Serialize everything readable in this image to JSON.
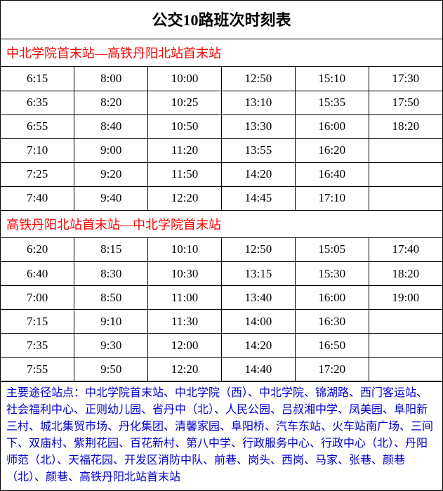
{
  "title": "公交10路班次时刻表",
  "sections": [
    {
      "header": "中北学院首末站—高铁丹阳北站首末站",
      "rows": [
        [
          "6:15",
          "8:00",
          "10:00",
          "12:50",
          "15:10",
          "17:30"
        ],
        [
          "6:35",
          "8:20",
          "10:25",
          "13:10",
          "15:35",
          "17:50"
        ],
        [
          "6:55",
          "8:40",
          "10:50",
          "13:30",
          "16:00",
          "18:20"
        ],
        [
          "7:10",
          "9:00",
          "11:20",
          "13:55",
          "16:20",
          ""
        ],
        [
          "7:25",
          "9:20",
          "11:50",
          "14:20",
          "16:40",
          ""
        ],
        [
          "7:40",
          "9:40",
          "12:20",
          "14:45",
          "17:10",
          ""
        ]
      ]
    },
    {
      "header": "高铁丹阳北站首末站—中北学院首末站",
      "rows": [
        [
          "6:20",
          "8:15",
          "10:10",
          "12:50",
          "15:05",
          "17:40"
        ],
        [
          "6:40",
          "8:30",
          "10:30",
          "13:15",
          "15:30",
          "18:20"
        ],
        [
          "7:00",
          "8:50",
          "11:00",
          "13:40",
          "16:00",
          "19:00"
        ],
        [
          "7:15",
          "9:10",
          "11:30",
          "14:00",
          "16:30",
          ""
        ],
        [
          "7:35",
          "9:30",
          "12:00",
          "14:20",
          "16:50",
          ""
        ],
        [
          "7:55",
          "9:50",
          "12:20",
          "14:40",
          "17:20",
          ""
        ]
      ]
    }
  ],
  "stops_label": "主要途径站点：",
  "stops_text": "中北学院首末站、中北学院（西）、中北学院、锦湖路、西门客运站、社会福利中心、正则幼儿园、省丹中（北）、人民公园、吕叔湘中学、凤美园、阜阳新三村、城北集贸市场、丹化集团、清馨家园、阜阳桥、汽车东站、火车站南广场、三间下、双庙村、紫荆花园、百花新村、第八中学、行政服务中心、行政中心（北）、丹阳师范（北）、天福花园、开发区消防中队、前巷、岗头、西岗、马家、张巷、颜巷（北）、颜巷、高铁丹阳北站首末站",
  "colors": {
    "header_text": "#ff0000",
    "stops_text": "#0000d0",
    "border": "#000000",
    "background": "#ffffff"
  }
}
